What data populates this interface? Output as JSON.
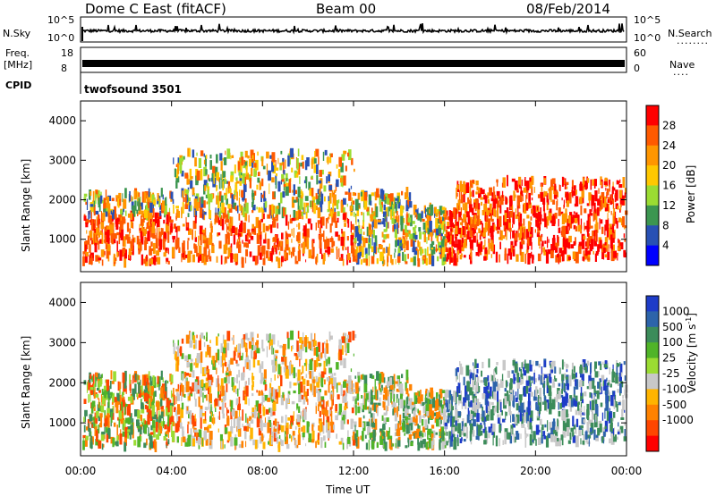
{
  "header": {
    "station": "Dome C East (fitACF)",
    "beam": "Beam 00",
    "date": "08/Feb/2014"
  },
  "strip_labels": {
    "nsky": "N.Sky",
    "freq_line1": "Freq.",
    "freq_line2": "[MHz]",
    "cpid": "CPID",
    "nsearch": "N.Search",
    "nave": "Nave",
    "nsearch_dots": "........",
    "nave_dots": "....",
    "cpid_value": "twofsound 3501"
  },
  "noise_axis": {
    "left": [
      "10^5",
      "10^0"
    ],
    "right": [
      "10^5",
      "10^0"
    ]
  },
  "freq_axis": {
    "left": [
      "18",
      "8"
    ],
    "right": [
      "60",
      "0"
    ]
  },
  "chart_data": [
    {
      "type": "heatmap",
      "name": "power",
      "ylabel": "Slant Range [km]",
      "xlabel": "",
      "xlim": [
        "00:00",
        "00:00"
      ],
      "ylim": [
        180,
        4500
      ],
      "yticks": [
        1000,
        2000,
        3000,
        4000
      ],
      "colorbar": {
        "label": "Power [dB]",
        "ticks": [
          "28",
          "24",
          "20",
          "16",
          "12",
          "8",
          "4"
        ],
        "colors": [
          "#ff0000",
          "#ff5a00",
          "#ff9600",
          "#ffc800",
          "#9bdc32",
          "#3c9650",
          "#2850b4",
          "#0000ff"
        ]
      }
    },
    {
      "type": "heatmap",
      "name": "velocity",
      "ylabel": "Slant Range [km]",
      "xlabel": "Time UT",
      "xticks": [
        "00:00",
        "04:00",
        "08:00",
        "12:00",
        "16:00",
        "20:00",
        "00:00"
      ],
      "ylim": [
        180,
        4500
      ],
      "yticks": [
        1000,
        2000,
        3000,
        4000
      ],
      "colorbar": {
        "label": "Velocity [m s^-1]",
        "ticks": [
          "1000",
          "500",
          "100",
          "25",
          "-25",
          "-100",
          "-500",
          "-1000"
        ],
        "colors": [
          "#1e3cc8",
          "#2d64aa",
          "#3c8c5a",
          "#50b428",
          "#9bdc32",
          "#c8c8c8",
          "#ffb400",
          "#ff8200",
          "#ff4600",
          "#ff0000"
        ]
      }
    }
  ]
}
